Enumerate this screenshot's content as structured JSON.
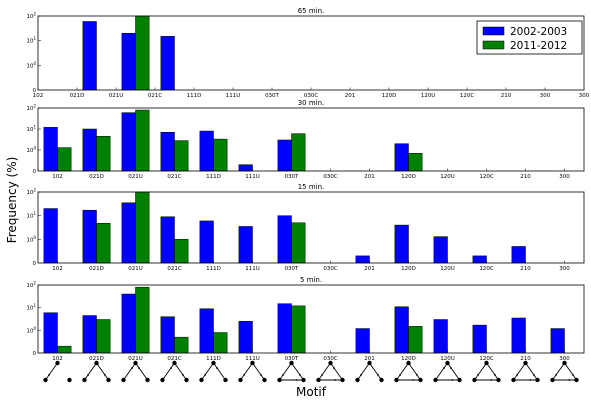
{
  "chart_data": {
    "type": "bar",
    "xlabel": "Motif",
    "ylabel": "Frequency (%)",
    "yscale": "log",
    "y_tick_labels": [
      "10^0",
      "10^1",
      "10^2"
    ],
    "categories": [
      "102",
      "021D",
      "021U",
      "021C",
      "111D",
      "111U",
      "030T",
      "030C",
      "201",
      "120D",
      "120U",
      "120C",
      "210",
      "300"
    ],
    "legend": {
      "placement": "top-right",
      "entries": [
        "2002-2003",
        "2011-2012"
      ]
    },
    "colors": {
      "2002-2003": "#0000ff",
      "2011-2012": "#008000"
    },
    "panels": [
      {
        "title": "65 min.",
        "ylim": [
          0.1,
          100
        ],
        "series": [
          {
            "name": "2002-2003",
            "values": [
              0,
              60,
              20,
              15,
              0,
              0,
              0,
              0,
              0,
              0,
              0,
              0,
              0,
              0
            ]
          },
          {
            "name": "2011-2012",
            "values": [
              0,
              0,
              100,
              0,
              0,
              0,
              0,
              0,
              0,
              0,
              0,
              0,
              0,
              0
            ]
          }
        ]
      },
      {
        "title": "30 min.",
        "ylim": [
          0.1,
          100
        ],
        "series": [
          {
            "name": "2002-2003",
            "values": [
              12,
              10,
              60,
              7,
              8,
              0.2,
              3,
              0,
              0,
              2,
              0.06,
              0.06,
              0.1,
              0
            ]
          },
          {
            "name": "2011-2012",
            "values": [
              1.3,
              4.5,
              80,
              2.8,
              3.3,
              0.05,
              6,
              0,
              0,
              0.7,
              0,
              0,
              0,
              0
            ]
          }
        ]
      },
      {
        "title": "15 min.",
        "ylim": [
          0.1,
          100
        ],
        "series": [
          {
            "name": "2002-2003",
            "values": [
              20,
              17,
              35,
              9,
              6,
              3.5,
              10,
              0.02,
              0.2,
              4,
              1.3,
              0.2,
              0.5,
              0.1
            ]
          },
          {
            "name": "2011-2012",
            "values": [
              0,
              4.8,
              100,
              1,
              0,
              0,
              5,
              0.02,
              0,
              0,
              0,
              0,
              0,
              0
            ]
          }
        ]
      },
      {
        "title": "5 min.",
        "ylim": [
          0.1,
          100
        ],
        "series": [
          {
            "name": "2002-2003",
            "values": [
              6,
              4.5,
              40,
              4,
              9,
              2.5,
              15,
              0.1,
              1.2,
              11,
              3,
              1.7,
              3.5,
              1.2
            ]
          },
          {
            "name": "2011-2012",
            "values": [
              0.2,
              3,
              80,
              0.5,
              0.8,
              0,
              12,
              0,
              0,
              1.5,
              0.1,
              0,
              0,
              0
            ]
          }
        ]
      }
    ]
  }
}
